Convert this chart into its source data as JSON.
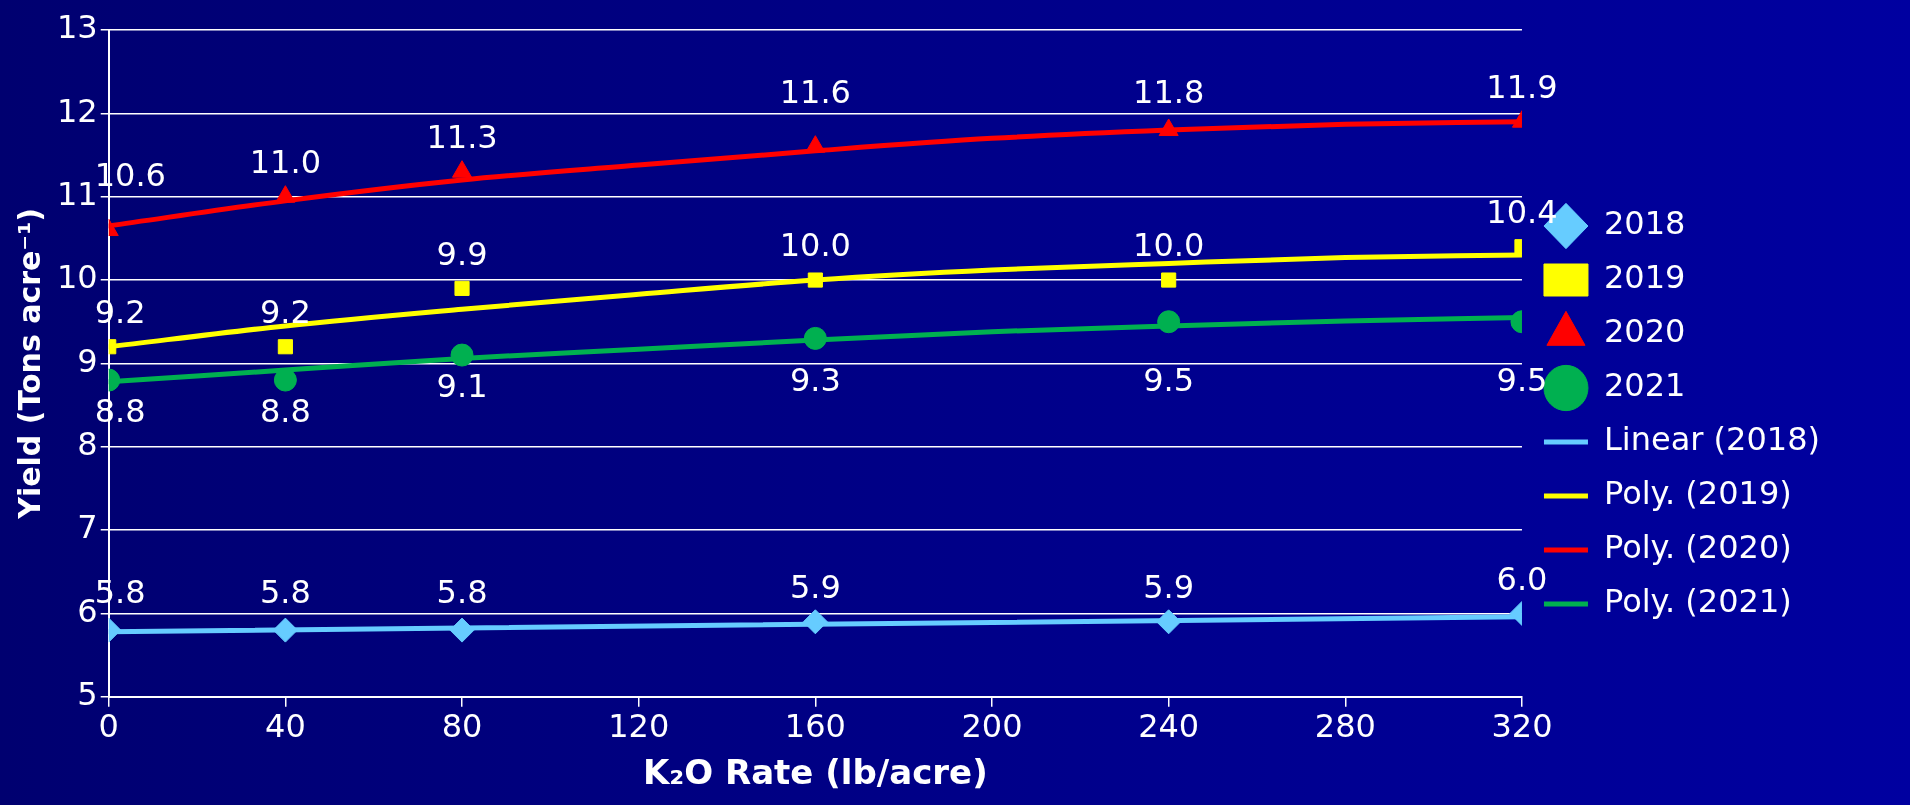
{
  "chart_data": {
    "type": "scatter",
    "xlabel": "K₂O Rate (lb/acre)",
    "ylabel": "Yield (Tons acre⁻¹)",
    "xlim": [
      0,
      320
    ],
    "xticks": [
      0,
      40,
      80,
      120,
      160,
      200,
      240,
      280,
      320
    ],
    "ylim": [
      5,
      13
    ],
    "yticks": [
      5,
      6,
      7,
      8,
      9,
      10,
      11,
      12,
      13
    ],
    "grid": "y",
    "legend": "right",
    "series": [
      {
        "name": "2018",
        "type": "scatter",
        "marker": "diamond",
        "color": "#66ccff",
        "x": [
          0,
          40,
          80,
          160,
          240,
          320
        ],
        "values": [
          5.8,
          5.8,
          5.8,
          5.9,
          5.9,
          6.0
        ],
        "value_labels": [
          "5.8",
          "5.8",
          "5.8",
          "5.9",
          "5.9",
          "6.0"
        ]
      },
      {
        "name": "2019",
        "type": "scatter",
        "marker": "square",
        "color": "#ffff00",
        "x": [
          0,
          40,
          80,
          160,
          240,
          320
        ],
        "values": [
          9.2,
          9.2,
          9.9,
          10.0,
          10.0,
          10.4
        ],
        "value_labels": [
          "9.2",
          "9.2",
          "9.9",
          "10.0",
          "10.0",
          "10.4"
        ]
      },
      {
        "name": "2020",
        "type": "scatter",
        "marker": "triangle",
        "color": "#ff0000",
        "x": [
          0,
          40,
          80,
          160,
          240,
          320
        ],
        "values": [
          10.6,
          11.0,
          11.3,
          11.6,
          11.8,
          11.9
        ],
        "value_labels": [
          "10.6",
          "11.0",
          "11.3",
          "11.6",
          "11.8",
          "11.9"
        ]
      },
      {
        "name": "2021",
        "type": "scatter",
        "marker": "circle",
        "color": "#00b050",
        "x": [
          0,
          40,
          80,
          160,
          240,
          320
        ],
        "values": [
          8.8,
          8.8,
          9.1,
          9.3,
          9.5,
          9.5
        ],
        "value_labels": [
          "8.8",
          "8.8",
          "9.1",
          "9.3",
          "9.5",
          "9.5"
        ]
      },
      {
        "name": "Linear (2018)",
        "type": "line",
        "marker": "none",
        "color": "#66ccff",
        "x": [
          0,
          320
        ],
        "values": [
          5.78,
          5.96
        ]
      },
      {
        "name": "Poly. (2019)",
        "type": "line",
        "marker": "none",
        "color": "#ffff00",
        "x": [
          0,
          40,
          80,
          120,
          160,
          200,
          240,
          280,
          320
        ],
        "values": [
          9.2,
          9.45,
          9.65,
          9.83,
          10.0,
          10.12,
          10.2,
          10.27,
          10.3
        ]
      },
      {
        "name": "Poly. (2020)",
        "type": "line",
        "marker": "none",
        "color": "#ff0000",
        "x": [
          0,
          40,
          80,
          120,
          160,
          200,
          240,
          280,
          320
        ],
        "values": [
          10.65,
          10.95,
          11.2,
          11.38,
          11.55,
          11.7,
          11.8,
          11.87,
          11.9
        ]
      },
      {
        "name": "Poly. (2021)",
        "type": "line",
        "marker": "none",
        "color": "#00b050",
        "x": [
          0,
          40,
          80,
          120,
          160,
          200,
          240,
          280,
          320
        ],
        "values": [
          8.78,
          8.92,
          9.06,
          9.17,
          9.28,
          9.38,
          9.45,
          9.51,
          9.55
        ]
      }
    ]
  }
}
